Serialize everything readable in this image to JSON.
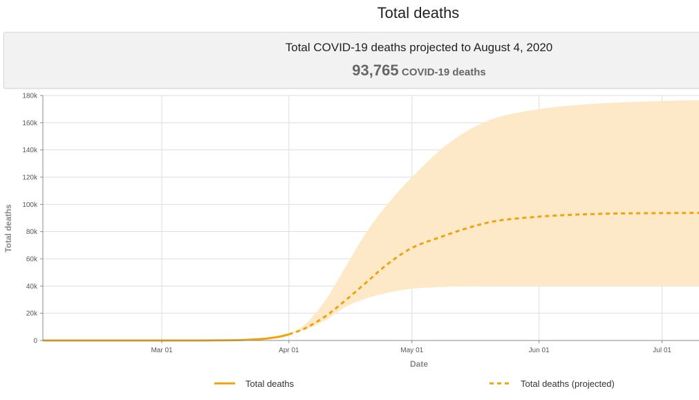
{
  "page": {
    "title": "Total deaths"
  },
  "summary": {
    "headline": "Total COVID-19 deaths projected to August 4, 2020",
    "value": "93,765",
    "unit": "COVID-19 deaths"
  },
  "colors": {
    "series": "#f0a30a",
    "band": "#fde9c7",
    "grid": "#dddddd",
    "axis": "#888888"
  },
  "chart_data": {
    "type": "line",
    "xlabel": "Date",
    "ylabel": "Total deaths",
    "xlim": [
      "2020-02-01",
      "2020-07-10"
    ],
    "ylim": [
      0,
      180000
    ],
    "x_ticks": [
      {
        "date": "2020-03-01",
        "label": "Mar 01"
      },
      {
        "date": "2020-04-01",
        "label": "Apr 01"
      },
      {
        "date": "2020-05-01",
        "label": "May 01"
      },
      {
        "date": "2020-06-01",
        "label": "Jun 01"
      },
      {
        "date": "2020-07-01",
        "label": "Jul 01"
      }
    ],
    "y_ticks": [
      {
        "value": 0,
        "label": "0"
      },
      {
        "value": 20000,
        "label": "20k"
      },
      {
        "value": 40000,
        "label": "40k"
      },
      {
        "value": 60000,
        "label": "60k"
      },
      {
        "value": 80000,
        "label": "80k"
      },
      {
        "value": 100000,
        "label": "100k"
      },
      {
        "value": 120000,
        "label": "120k"
      },
      {
        "value": 140000,
        "label": "140k"
      },
      {
        "value": 160000,
        "label": "160k"
      },
      {
        "value": 180000,
        "label": "180k"
      }
    ],
    "grid": true,
    "legend_position": "bottom",
    "series": [
      {
        "name": "Total deaths",
        "style": "solid",
        "points": [
          {
            "x": "2020-02-01",
            "y": 0
          },
          {
            "x": "2020-03-01",
            "y": 0
          },
          {
            "x": "2020-03-10",
            "y": 30
          },
          {
            "x": "2020-03-15",
            "y": 100
          },
          {
            "x": "2020-03-20",
            "y": 300
          },
          {
            "x": "2020-03-25",
            "y": 1000
          },
          {
            "x": "2020-03-28",
            "y": 2000
          },
          {
            "x": "2020-03-30",
            "y": 3000
          },
          {
            "x": "2020-04-01",
            "y": 4500
          }
        ]
      },
      {
        "name": "Total deaths (projected)",
        "style": "dashed",
        "points": [
          {
            "x": "2020-04-01",
            "y": 4500
          },
          {
            "x": "2020-04-05",
            "y": 9000
          },
          {
            "x": "2020-04-10",
            "y": 18000
          },
          {
            "x": "2020-04-15",
            "y": 30000
          },
          {
            "x": "2020-04-20",
            "y": 43000
          },
          {
            "x": "2020-04-25",
            "y": 56000
          },
          {
            "x": "2020-05-01",
            "y": 68000
          },
          {
            "x": "2020-05-08",
            "y": 76000
          },
          {
            "x": "2020-05-15",
            "y": 83000
          },
          {
            "x": "2020-05-22",
            "y": 88000
          },
          {
            "x": "2020-06-01",
            "y": 91000
          },
          {
            "x": "2020-06-10",
            "y": 92500
          },
          {
            "x": "2020-06-20",
            "y": 93300
          },
          {
            "x": "2020-07-01",
            "y": 93600
          },
          {
            "x": "2020-07-10",
            "y": 93765
          }
        ]
      }
    ],
    "uncertainty_band": {
      "points": [
        {
          "x": "2020-04-01",
          "lower": 4500,
          "upper": 5000
        },
        {
          "x": "2020-04-05",
          "lower": 8000,
          "upper": 12000
        },
        {
          "x": "2020-04-10",
          "lower": 15000,
          "upper": 30000
        },
        {
          "x": "2020-04-15",
          "lower": 25000,
          "upper": 55000
        },
        {
          "x": "2020-04-20",
          "lower": 31000,
          "upper": 80000
        },
        {
          "x": "2020-04-25",
          "lower": 35000,
          "upper": 100000
        },
        {
          "x": "2020-05-01",
          "lower": 38000,
          "upper": 120000
        },
        {
          "x": "2020-05-10",
          "lower": 39500,
          "upper": 145000
        },
        {
          "x": "2020-05-20",
          "lower": 40000,
          "upper": 162000
        },
        {
          "x": "2020-06-01",
          "lower": 40000,
          "upper": 170000
        },
        {
          "x": "2020-06-15",
          "lower": 40000,
          "upper": 174000
        },
        {
          "x": "2020-07-01",
          "lower": 40000,
          "upper": 176000
        },
        {
          "x": "2020-07-10",
          "lower": 40000,
          "upper": 176500
        }
      ]
    }
  }
}
